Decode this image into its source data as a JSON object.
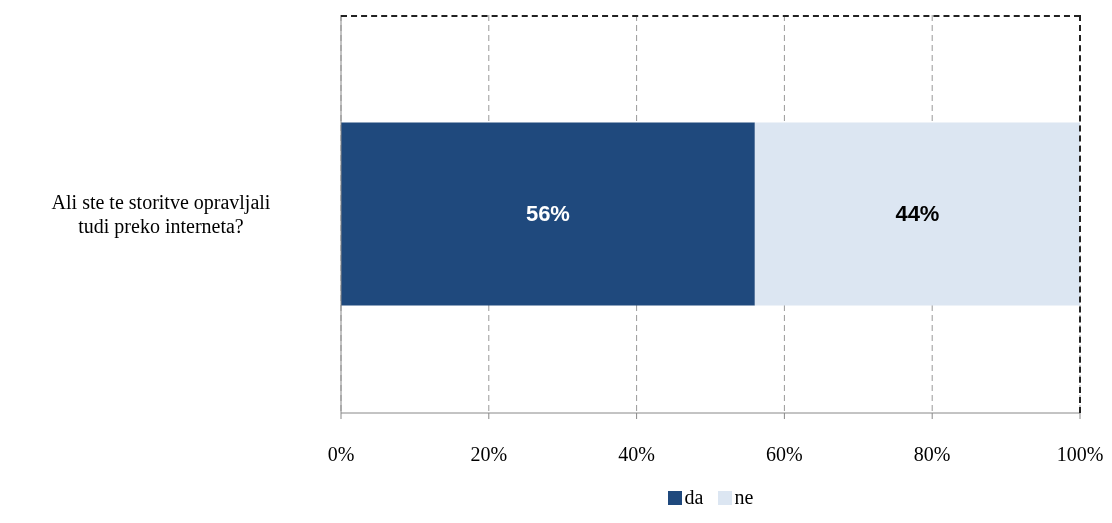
{
  "chart_data": {
    "type": "bar",
    "orientation": "horizontal",
    "stacked": true,
    "categories": [
      "Ali ste te storitve opravljali tudi preko interneta?"
    ],
    "series": [
      {
        "name": "da",
        "color": "#1f497d",
        "values": [
          56
        ],
        "value_labels": [
          "56%"
        ]
      },
      {
        "name": "ne",
        "color": "#dce6f2",
        "values": [
          44
        ],
        "value_labels": [
          "44%"
        ]
      }
    ],
    "xlim": [
      0,
      100
    ],
    "xticks": [
      {
        "value": 0,
        "label": "0%"
      },
      {
        "value": 20,
        "label": "20%"
      },
      {
        "value": 40,
        "label": "40%"
      },
      {
        "value": 60,
        "label": "60%"
      },
      {
        "value": 80,
        "label": "80%"
      },
      {
        "value": 100,
        "label": "100%"
      }
    ],
    "grid": "x",
    "legend": "bottom"
  }
}
